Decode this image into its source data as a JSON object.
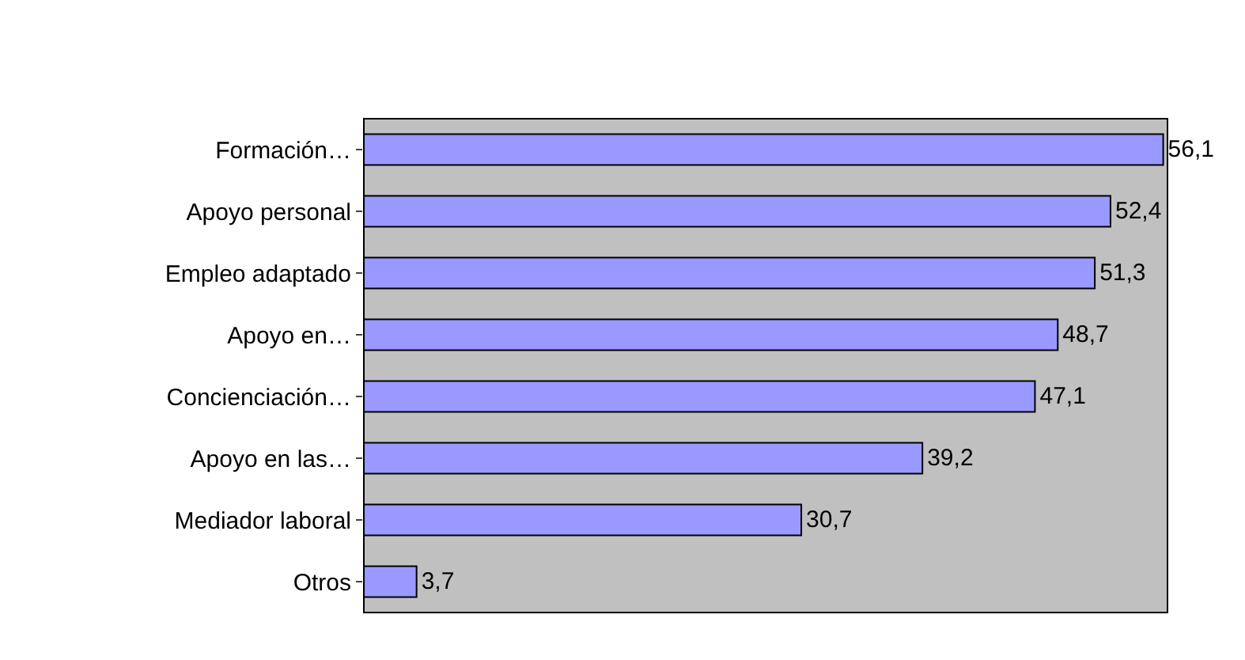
{
  "chart_data": {
    "type": "bar",
    "orientation": "horizontal",
    "categories": [
      "Formación…",
      "Apoyo personal",
      "Empleo adaptado",
      "Apoyo en…",
      "Concienciación…",
      "Apoyo en las…",
      "Mediador laboral",
      "Otros"
    ],
    "values": [
      56.1,
      52.4,
      51.3,
      48.7,
      47.1,
      39.2,
      30.7,
      3.7
    ],
    "value_labels": [
      "56,1",
      "52,4",
      "51,3",
      "48,7",
      "47,1",
      "39,2",
      "30,7",
      "3,7"
    ],
    "color": "#9999ff",
    "xlim": [
      0,
      56.4
    ],
    "tick_labels": "y",
    "grid": false,
    "legend": false
  }
}
